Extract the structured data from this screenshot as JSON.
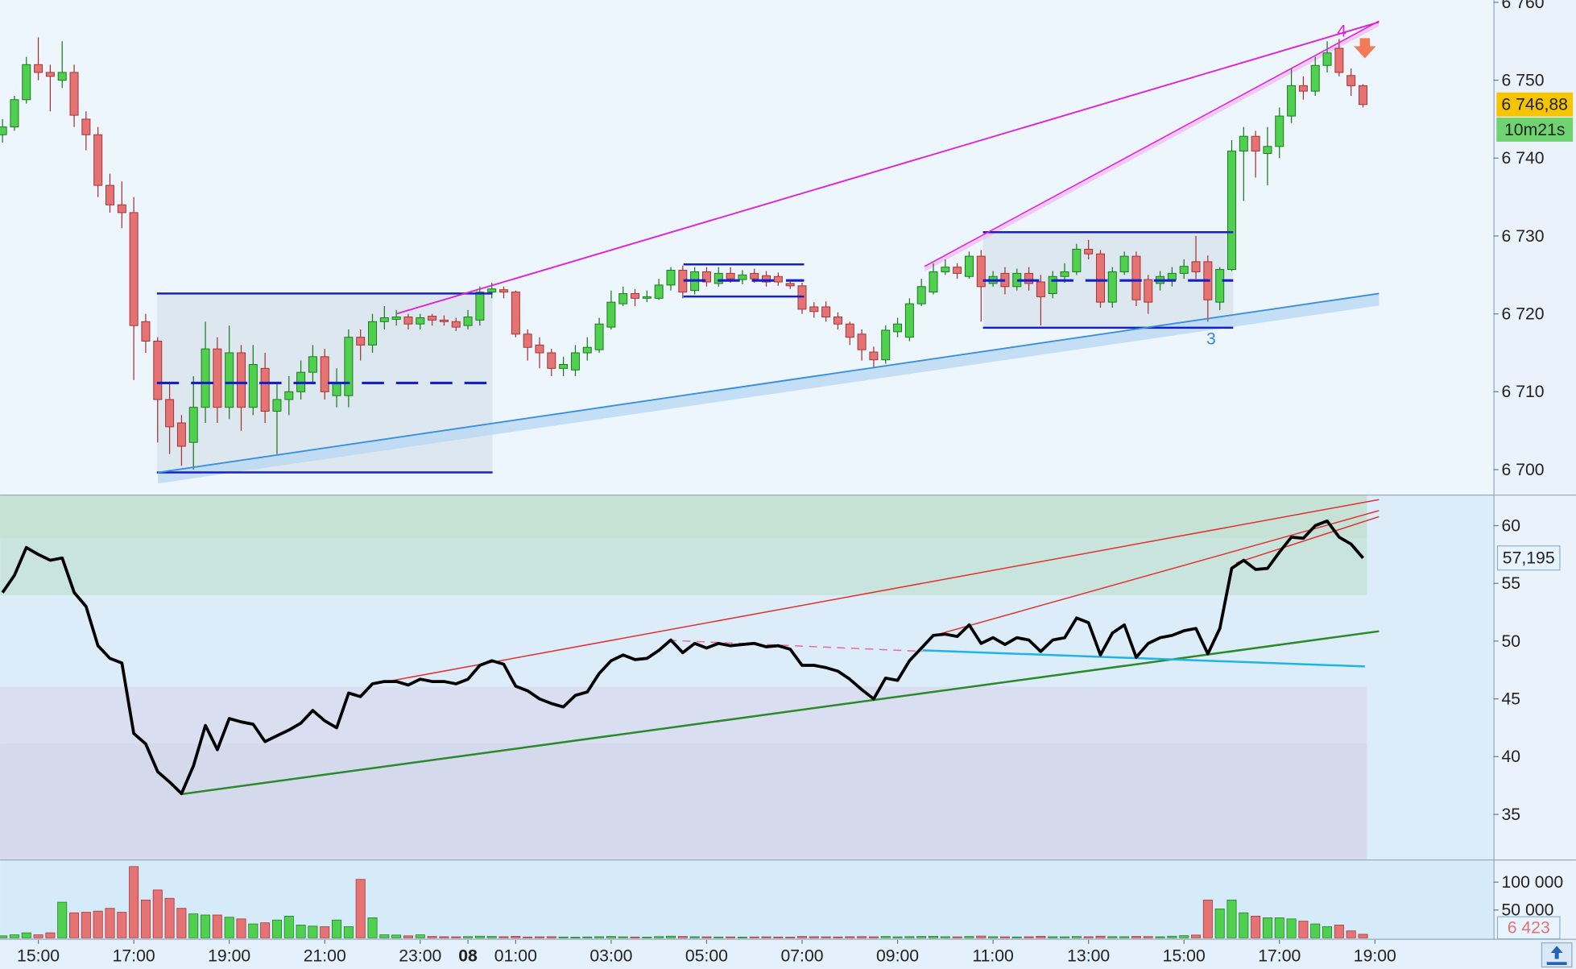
{
  "chart_data": [
    {
      "type": "candlestick",
      "categories": [
        null,
        null,
        null,
        "15:00",
        null,
        null,
        null,
        null,
        null,
        null,
        null,
        "17:00",
        null,
        null,
        null,
        null,
        null,
        null,
        null,
        "19:00",
        null,
        null,
        null,
        null,
        null,
        null,
        null,
        "21:00",
        null,
        null,
        null,
        null,
        null,
        null,
        null,
        "23:00",
        null,
        null,
        null,
        "08",
        null,
        null,
        null,
        "01:00",
        null,
        null,
        null,
        null,
        null,
        null,
        null,
        "03:00",
        null,
        null,
        null,
        null,
        null,
        null,
        null,
        "05:00",
        null,
        null,
        null,
        null,
        null,
        null,
        null,
        "07:00",
        null,
        null,
        null,
        null,
        null,
        null,
        null,
        "09:00",
        null,
        null,
        null,
        null,
        null,
        null,
        null,
        "11:00",
        null,
        null,
        null,
        null,
        null,
        null,
        null,
        "13:00",
        null,
        null,
        null,
        null,
        null,
        null,
        null,
        "15:00",
        null,
        null,
        null,
        null,
        null,
        null,
        null,
        "17:00",
        null,
        null,
        null,
        null,
        null,
        null,
        null,
        "19:00"
      ],
      "open": [
        6743,
        6744,
        6747.5,
        6752,
        6751,
        6750,
        6751,
        6745,
        6743,
        6736.5,
        6734,
        6733,
        6719,
        6716.5,
        6709,
        6706,
        6703.5,
        6708,
        6715.5,
        6708,
        6715,
        6708,
        6713,
        6707.5,
        6709,
        6710,
        6712.5,
        6714.5,
        6709.5,
        6709.5,
        6717,
        6716,
        6719,
        6719.3,
        6719.6,
        6718.7,
        6719.7,
        6719.2,
        6719,
        6718.5,
        6719.2,
        6722.8,
        6723.1,
        6722.8,
        6717.4,
        6716,
        6715,
        6713,
        6712.8,
        6715,
        6715.4,
        6718.3,
        6721.3,
        6722.6,
        6722,
        6722,
        6723.7,
        6725.6,
        6723,
        6725.4,
        6723.9,
        6725.2,
        6724.4,
        6725.2,
        6724.9,
        6724.8,
        6723.9,
        6723.6,
        6720.9,
        6720.9,
        6719.6,
        6718.7,
        6717.4,
        6715.1,
        6714.1,
        6717.7,
        6717,
        6721.3,
        6722.8,
        6725.4,
        6726,
        6724.8,
        6727.4,
        6723.9,
        6725.2,
        6723.5,
        6725.2,
        6724.1,
        6722.6,
        6724.8,
        6725.4,
        6728.3,
        6727.7,
        6721.5,
        6725.4,
        6727.4,
        6724.4,
        6723.9,
        6724.4,
        6725.2,
        6726.7,
        6726.7,
        6721.5,
        6725.7,
        6740.9,
        6742.8,
        6740.6,
        6741.5,
        6745.4,
        6749.3,
        6748.6,
        6751.9,
        6754.1,
        6750.6,
        6749.3,
        null
      ],
      "high": [
        6745,
        6748,
        6753,
        6755.5,
        6752,
        6755,
        6752,
        6746,
        6744,
        6738,
        6737,
        6735,
        6720,
        6717,
        6711,
        6707,
        6712,
        6719,
        6717,
        6718.5,
        6716,
        6716,
        6715,
        6711,
        6712,
        6714,
        6716,
        6715.5,
        6713,
        6718,
        6718,
        6720,
        6721,
        6720.5,
        6720,
        6720,
        6720,
        6719.8,
        6719.5,
        6720.5,
        6723.5,
        6724,
        6723.5,
        6723,
        6718,
        6717,
        6715.5,
        6714.5,
        6716,
        6717,
        6719.5,
        6723,
        6723.5,
        6723.2,
        6723,
        6724.5,
        6726,
        6726.2,
        6726,
        6726,
        6726,
        6726,
        6725.6,
        6725.8,
        6725.5,
        6725.3,
        6724.3,
        6724,
        6721.5,
        6721.6,
        6720.2,
        6719,
        6718,
        6715.8,
        6718.5,
        6719.5,
        6722,
        6724.5,
        6726.5,
        6727,
        6726.5,
        6728,
        6728.2,
        6725.5,
        6726,
        6725.8,
        6726,
        6725,
        6725.5,
        6726.5,
        6729,
        6729.5,
        6728.2,
        6726,
        6728,
        6728,
        6725,
        6725.5,
        6726,
        6727,
        6730,
        6727.5,
        6726,
        6742.3,
        6744,
        6743.5,
        6744,
        6746.5,
        6751.5,
        6750.5,
        6753,
        6755,
        6755.3,
        6751.5,
        6749.5,
        null
      ],
      "low": [
        6742,
        6743.5,
        6747,
        6750,
        6746,
        6749,
        6744,
        6741,
        6735,
        6733,
        6731,
        6711.5,
        6715,
        6703.5,
        6702,
        6700.5,
        6700,
        6706,
        6706,
        6706.5,
        6705,
        6707,
        6706,
        6702,
        6707,
        6709,
        6711,
        6709,
        6708,
        6708,
        6714,
        6715,
        6718,
        6718.5,
        6718,
        6718,
        6718.5,
        6718.5,
        6717.8,
        6718,
        6718.5,
        6722,
        6722,
        6717,
        6714,
        6713,
        6712,
        6712,
        6712,
        6714,
        6715,
        6718,
        6721,
        6721,
        6721.5,
        6721.8,
        6723,
        6722,
        6722.5,
        6723.5,
        6723.5,
        6724,
        6723.8,
        6724,
        6723.5,
        6723.6,
        6723.2,
        6720,
        6719.5,
        6719,
        6718,
        6716,
        6714,
        6713,
        6713.6,
        6717,
        6716.5,
        6721,
        6722.5,
        6725,
        6724.5,
        6724.5,
        6719,
        6723.5,
        6722.5,
        6723,
        6723,
        6718.5,
        6722,
        6724,
        6725,
        6727,
        6720.8,
        6720.8,
        6725,
        6721,
        6720,
        6723,
        6723.5,
        6724.5,
        6724.5,
        6719,
        6720.5,
        6725.5,
        6734.5,
        6737.5,
        6736.5,
        6740,
        6744.5,
        6747.5,
        6748,
        6751,
        6750.5,
        6748,
        6746.5,
        null
      ],
      "close": [
        6744,
        6747.5,
        6752,
        6751,
        6750.5,
        6751,
        6745.5,
        6743,
        6736.5,
        6734,
        6733,
        6718.5,
        6716.5,
        6709,
        6705.5,
        6703,
        6708,
        6715.5,
        6708,
        6715,
        6708,
        6713.5,
        6707.5,
        6709,
        6710,
        6712.5,
        6714.5,
        6710,
        6711,
        6717,
        6716,
        6719,
        6719.5,
        6719.6,
        6718.7,
        6719.5,
        6719.2,
        6719,
        6718.3,
        6719.6,
        6722.8,
        6723.2,
        6722.8,
        6717.4,
        6715.7,
        6715,
        6713,
        6713.5,
        6715,
        6715.7,
        6718.7,
        6721.5,
        6722.6,
        6722,
        6722.2,
        6723.7,
        6725.6,
        6722.8,
        6725.4,
        6724.1,
        6725.2,
        6724.5,
        6725,
        6724.5,
        6724.1,
        6724.1,
        6723.6,
        6720.6,
        6720.3,
        6719.6,
        6718.7,
        6717,
        6715.4,
        6714.1,
        6717.9,
        6718.7,
        6721.3,
        6723.5,
        6725.4,
        6726,
        6725.2,
        6727.4,
        6723.5,
        6724.8,
        6723.5,
        6725.2,
        6723.9,
        6722.2,
        6724.8,
        6725.4,
        6728.3,
        6727.7,
        6721.5,
        6725.4,
        6727.4,
        6721.8,
        6721.5,
        6724.8,
        6725.2,
        6726.1,
        6725.4,
        6721.8,
        6725.7,
        6740.9,
        6742.8,
        6740.9,
        6741.5,
        6745.4,
        6749.3,
        6748.6,
        6751.9,
        6753.5,
        6751,
        6749.3,
        6746.88,
        null
      ],
      "up_color": "#4fd14f",
      "down_color": "#e57373",
      "ylim": [
        6696.8,
        6760.3
      ],
      "yticks": [
        {
          "value": 6700,
          "label": "6 700"
        },
        {
          "value": 6710,
          "label": "6 710"
        },
        {
          "value": 6720,
          "label": "6 720"
        },
        {
          "value": 6730,
          "label": "6 730"
        },
        {
          "value": 6740,
          "label": "6 740"
        },
        {
          "value": 6750,
          "label": "6 750"
        },
        {
          "value": 6760,
          "label": "6 760"
        }
      ],
      "last_price": {
        "value": 6746.88,
        "label": "6 746,88"
      },
      "countdown": "10m21s",
      "annotations": [
        "3",
        "4"
      ]
    },
    {
      "type": "line",
      "color": "#000000",
      "values": [
        54.2,
        55.7,
        58.1,
        57.5,
        57,
        57.2,
        54.2,
        53,
        49.6,
        48.5,
        48.1,
        42,
        41.1,
        38.7,
        37.8,
        36.8,
        39.2,
        42.7,
        40.6,
        43.3,
        43,
        42.8,
        41.3,
        41.8,
        42.3,
        42.9,
        44,
        43.1,
        42.5,
        45.5,
        45.2,
        46.3,
        46.5,
        46.5,
        46.2,
        46.7,
        46.5,
        46.5,
        46.3,
        46.7,
        47.9,
        48.3,
        48,
        46.1,
        45.7,
        45,
        44.6,
        44.3,
        45.3,
        45.6,
        47.2,
        48.3,
        48.8,
        48.4,
        48.5,
        49.2,
        50.1,
        49,
        49.8,
        49.4,
        49.8,
        49.6,
        49.7,
        49.8,
        49.5,
        49.6,
        49.3,
        47.9,
        47.9,
        47.7,
        47.4,
        46.7,
        45.8,
        45,
        46.8,
        46.6,
        48.3,
        49.4,
        50.5,
        50.6,
        50.4,
        51.4,
        49.8,
        50.3,
        49.7,
        50.3,
        50.1,
        49.1,
        50.1,
        50.3,
        52,
        51.6,
        48.8,
        50.7,
        51.4,
        48.6,
        49.8,
        50.3,
        50.5,
        50.9,
        51.1,
        48.9,
        51.1,
        56.3,
        57,
        56.2,
        56.3,
        57.7,
        59,
        58.9,
        60,
        60.4,
        59,
        58.4,
        57.195,
        null
      ],
      "ylim": [
        31.1,
        62.6
      ],
      "yticks": [
        35,
        40,
        45,
        50,
        55,
        60
      ],
      "last_value": {
        "value": 57.195,
        "label": "57,195"
      }
    },
    {
      "type": "bar",
      "values": [
        3600,
        5400,
        9000,
        5400,
        9000,
        64000,
        45000,
        46000,
        48000,
        53000,
        46000,
        128000,
        68000,
        86000,
        71000,
        53000,
        43000,
        41000,
        41000,
        37000,
        34000,
        25000,
        27000,
        32000,
        39000,
        23000,
        21000,
        20000,
        32000,
        20000,
        105000,
        36000,
        5400,
        5000,
        3600,
        5400,
        2500,
        2000,
        1800,
        2200,
        3000,
        2500,
        2000,
        2800,
        1500,
        1800,
        2000,
        1500,
        1200,
        1600,
        2000,
        2500,
        1800,
        1500,
        1400,
        2200,
        3000,
        2500,
        2000,
        1800,
        1500,
        1700,
        1400,
        1600,
        1800,
        1500,
        1400,
        2500,
        2000,
        1800,
        1600,
        2000,
        2200,
        1900,
        2500,
        1800,
        2200,
        2600,
        2800,
        2000,
        1800,
        2400,
        3200,
        2000,
        1800,
        1600,
        1900,
        2800,
        2000,
        1800,
        2400,
        2000,
        3000,
        2200,
        2100,
        2600,
        2300,
        1900,
        3000,
        4000,
        5000,
        68000,
        52000,
        68000,
        45000,
        39000,
        36000,
        36000,
        34000,
        30000,
        25000,
        20000,
        23000,
        12500,
        6423,
        null
      ],
      "ylim": [
        0,
        139000
      ],
      "yticks": [
        {
          "value": 50000,
          "label": "50 000"
        },
        {
          "value": 100000,
          "label": "100 000"
        }
      ],
      "last_value": {
        "value": 6423,
        "label": "6 423"
      }
    }
  ]
}
